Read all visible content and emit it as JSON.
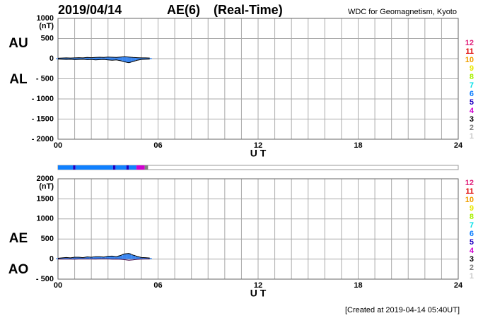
{
  "header": {
    "date": "2019/04/14",
    "index": "AE(6)",
    "mode": "(Real-Time)",
    "source": "WDC for Geomagnetism, Kyoto"
  },
  "footer": "[Created at 2019-04-14 05:40UT]",
  "legend": [
    {
      "label": 12,
      "color": "#e0207a"
    },
    {
      "label": 11,
      "color": "#e00000"
    },
    {
      "label": 10,
      "color": "#f0a000"
    },
    {
      "label": 9,
      "color": "#e8e800"
    },
    {
      "label": 8,
      "color": "#a8f000"
    },
    {
      "label": 7,
      "color": "#00e0e8"
    },
    {
      "label": 6,
      "color": "#1080ff"
    },
    {
      "label": 5,
      "color": "#2000c0"
    },
    {
      "label": 4,
      "color": "#d000d0"
    },
    {
      "label": 3,
      "color": "#000000"
    },
    {
      "label": 2,
      "color": "#808080"
    },
    {
      "label": 1,
      "color": "#c8c8c8"
    }
  ],
  "activity_bar": [
    {
      "start": 0,
      "end": 0.9,
      "level": 6
    },
    {
      "start": 0.9,
      "end": 1.05,
      "level": 5
    },
    {
      "start": 1.05,
      "end": 3.3,
      "level": 6
    },
    {
      "start": 3.3,
      "end": 3.45,
      "level": 5
    },
    {
      "start": 3.45,
      "end": 4.1,
      "level": 6
    },
    {
      "start": 4.1,
      "end": 4.25,
      "level": 5
    },
    {
      "start": 4.25,
      "end": 4.7,
      "level": 6
    },
    {
      "start": 4.7,
      "end": 5.2,
      "level": 4
    },
    {
      "start": 5.2,
      "end": 5.4,
      "level": 2
    }
  ],
  "chart_data": [
    {
      "type": "line",
      "y_unit": "(nT)",
      "x_label": "U T",
      "x": [
        0,
        0.25,
        0.5,
        0.75,
        1,
        1.25,
        1.5,
        1.75,
        2,
        2.25,
        2.5,
        2.75,
        3,
        3.25,
        3.5,
        3.75,
        4,
        4.25,
        4.5,
        4.75,
        5,
        5.25,
        5.5
      ],
      "xlim": [
        0,
        24
      ],
      "xticks": [
        {
          "value": 0,
          "label": "00"
        },
        {
          "value": 6,
          "label": "06"
        },
        12,
        18,
        24
      ],
      "xgrid": [
        1,
        2,
        3,
        4,
        5,
        6,
        7,
        8,
        9,
        10,
        11,
        12,
        13,
        14,
        15,
        16,
        17,
        18,
        19,
        20,
        21,
        22,
        23
      ],
      "ylim": [
        -2000,
        1000
      ],
      "yticks": [
        1000,
        500,
        0,
        {
          "value": -500,
          "label": "- 500"
        },
        {
          "value": -1000,
          "label": "- 1000"
        },
        {
          "value": -1500,
          "label": "- 1500"
        },
        {
          "value": -2000,
          "label": "- 2000"
        }
      ],
      "grid": true,
      "fill": {
        "color": "#3a86f0",
        "between": [
          0,
          1
        ]
      },
      "series": [
        {
          "name": "AU",
          "color": "#000000",
          "values": [
            10,
            15,
            20,
            15,
            20,
            25,
            20,
            30,
            25,
            30,
            35,
            30,
            40,
            35,
            30,
            40,
            50,
            40,
            30,
            25,
            20,
            20,
            15
          ]
        },
        {
          "name": "AL",
          "color": "#000000",
          "values": [
            -10,
            -15,
            -20,
            -15,
            -25,
            -20,
            -15,
            -25,
            -20,
            -30,
            -25,
            -20,
            -30,
            -40,
            -30,
            -50,
            -80,
            -100,
            -70,
            -40,
            -20,
            -15,
            -10
          ]
        }
      ]
    },
    {
      "type": "line",
      "y_unit": "(nT)",
      "x_label": "U T",
      "x": [
        0,
        0.25,
        0.5,
        0.75,
        1,
        1.25,
        1.5,
        1.75,
        2,
        2.25,
        2.5,
        2.75,
        3,
        3.25,
        3.5,
        3.75,
        4,
        4.25,
        4.5,
        4.75,
        5,
        5.25,
        5.5
      ],
      "xlim": [
        0,
        24
      ],
      "xticks": [
        {
          "value": 0,
          "label": "00"
        },
        {
          "value": 6,
          "label": "06"
        },
        12,
        18,
        24
      ],
      "xgrid": [
        1,
        2,
        3,
        4,
        5,
        6,
        7,
        8,
        9,
        10,
        11,
        12,
        13,
        14,
        15,
        16,
        17,
        18,
        19,
        20,
        21,
        22,
        23
      ],
      "ylim": [
        -500,
        2000
      ],
      "yticks": [
        2000,
        1500,
        1000,
        500,
        0,
        {
          "value": -500,
          "label": "- 500"
        }
      ],
      "grid": true,
      "fill": {
        "color": "#3a86f0",
        "between": [
          0
        ]
      },
      "series": [
        {
          "name": "AE",
          "color": "#000000",
          "values": [
            20,
            30,
            40,
            30,
            45,
            45,
            35,
            55,
            45,
            60,
            60,
            50,
            70,
            75,
            60,
            90,
            130,
            140,
            100,
            65,
            40,
            35,
            25
          ]
        },
        {
          "name": "AO",
          "color": "#400040",
          "values": [
            0,
            0,
            0,
            0,
            -2.5,
            2.5,
            2.5,
            2.5,
            2.5,
            0,
            5,
            5,
            5,
            -2.5,
            0,
            -5,
            -15,
            -30,
            -20,
            -7.5,
            0,
            2.5,
            2.5
          ]
        }
      ]
    }
  ]
}
